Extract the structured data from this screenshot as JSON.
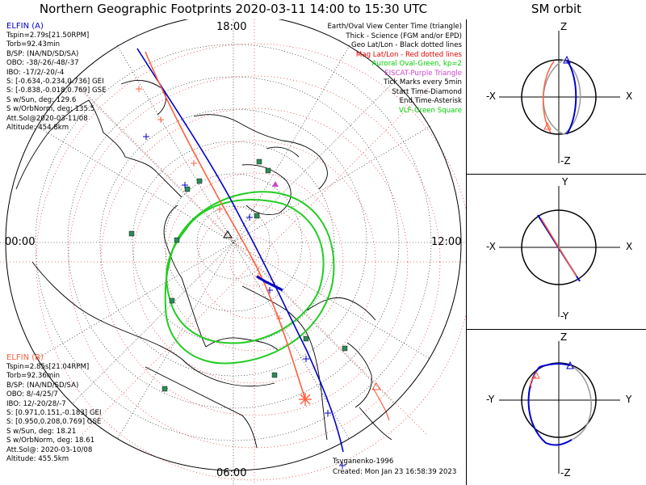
{
  "title": "Northern Geographic Footprints 2020-03-11 14:00 to 15:30 UTC",
  "sm_title": "SM orbit",
  "hour_labels": {
    "top": "18:00",
    "left": "00:00",
    "right": "12:00",
    "bottom": "06:00"
  },
  "elfin_a": {
    "name": "ELFIN (A)",
    "color": "#0000cc",
    "lines": [
      "Tspin=2.79s[21.50RPM]",
      "Torb=92.43min",
      "B/SP: (NA/ND/SD/SA)",
      "OBO: -38/-26/-48/-37",
      "IBO: -17/2/-20/-4",
      "S: [-0.634,-0.234,0.736] GEI",
      "S: [-0.838,-0.018,0.769] GSE",
      "S w/Sun, deg: 129.6",
      "S w/OrbNorm, deg: 135.5",
      "Att.Sol@2020-03-11/08",
      "Altitude: 454.8km"
    ]
  },
  "elfin_b": {
    "name": "ELFIN (B)",
    "color": "#ff6040",
    "lines": [
      "Tspin=2.85s[21.04RPM]",
      "Torb=92.36min",
      "B/SP: (NA/ND/SD/SA)",
      "OBO: 8/-4/25/7",
      "IBO: 12/-20/28/-7",
      "S: [0.971,0.151,-0.183] GEI",
      "S: [0.950,0.208,0.769] GSE",
      "S w/Sun, deg: 18.21",
      "S w/OrbNorm, deg: 18.61",
      "Att.Sol@: 2020-03-10/08",
      "Altitude: 455.5km"
    ]
  },
  "legend": [
    {
      "text": "Earth/Oval View Center Time (triangle)",
      "color": "#000000"
    },
    {
      "text": "Thick - Science (FGM and/or EPD)",
      "color": "#000000"
    },
    {
      "text": "Geo Lat/Lon - Black dotted lines",
      "color": "#000000"
    },
    {
      "text": "Mag Lat/Lon - Red dotted lines",
      "color": "#e00000"
    },
    {
      "text": "Auroral Oval-Green, kp=2",
      "color": "#00cc00"
    },
    {
      "text": "EISCAT-Purple Triangle",
      "color": "#cc44cc"
    },
    {
      "text": "Tick Marks every 5min",
      "color": "#000000"
    },
    {
      "text": "Start Time-Diamond",
      "color": "#000000"
    },
    {
      "text": "End Time-Asterisk",
      "color": "#000000"
    },
    {
      "text": "VLF-Green Square",
      "color": "#00cc00"
    }
  ],
  "credit": "Tsyganenko-1996",
  "created": "Created: Mon Jan 23 16:58:39 2023",
  "sm_panels": [
    {
      "top": "Z",
      "bottom": "-Z",
      "left": "-X",
      "right": "X"
    },
    {
      "top": "Y",
      "bottom": "-Y",
      "left": "-X",
      "right": "X"
    },
    {
      "top": "Z",
      "bottom": "-Z",
      "left": "-Y",
      "right": "Y"
    }
  ]
}
